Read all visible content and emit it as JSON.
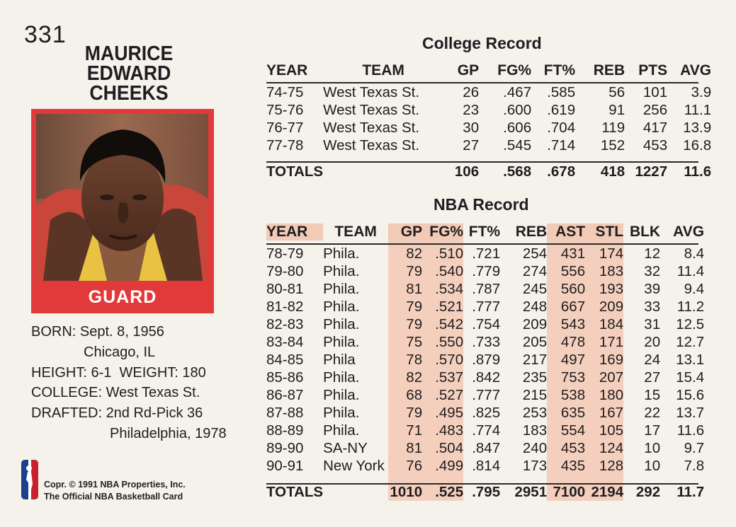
{
  "card_number": "331",
  "player": {
    "name_lines": [
      "MAURICE",
      "EDWARD",
      "CHEEKS"
    ],
    "position": "GUARD"
  },
  "bio": {
    "born_label": "BORN:",
    "born_date": "Sept. 8, 1956",
    "born_place": "Chicago, IL",
    "height_label": "HEIGHT:",
    "height": "6-1",
    "weight_label": "WEIGHT:",
    "weight": "180",
    "college_label": "COLLEGE:",
    "college": "West Texas St.",
    "drafted_label": "DRAFTED:",
    "drafted_pick": "2nd Rd-Pick 36",
    "drafted_team_year": "Philadelphia, 1978"
  },
  "copyright": {
    "line1": "Copr. © 1991 NBA Properties, Inc.",
    "line2": "The Official NBA Basketball Card"
  },
  "college_record": {
    "title": "College Record",
    "headers": [
      "YEAR",
      "TEAM",
      "GP",
      "FG%",
      "FT%",
      "REB",
      "PTS",
      "AVG"
    ],
    "rows": [
      [
        "74-75",
        "West Texas St.",
        "26",
        ".467",
        ".585",
        "56",
        "101",
        "3.9"
      ],
      [
        "75-76",
        "West Texas St.",
        "23",
        ".600",
        ".619",
        "91",
        "256",
        "11.1"
      ],
      [
        "76-77",
        "West Texas St.",
        "30",
        ".606",
        ".704",
        "119",
        "417",
        "13.9"
      ],
      [
        "77-78",
        "West Texas St.",
        "27",
        ".545",
        ".714",
        "152",
        "453",
        "16.8"
      ]
    ],
    "totals": [
      "TOTALS",
      "",
      "106",
      ".568",
      ".678",
      "418",
      "1227",
      "11.6"
    ]
  },
  "nba_record": {
    "title": "NBA Record",
    "headers": [
      "YEAR",
      "TEAM",
      "GP",
      "FG%",
      "FT%",
      "REB",
      "AST",
      "STL",
      "BLK",
      "AVG"
    ],
    "rows": [
      [
        "78-79",
        "Phila.",
        "82",
        ".510",
        ".721",
        "254",
        "431",
        "174",
        "12",
        "8.4"
      ],
      [
        "79-80",
        "Phila.",
        "79",
        ".540",
        ".779",
        "274",
        "556",
        "183",
        "32",
        "11.4"
      ],
      [
        "80-81",
        "Phila.",
        "81",
        ".534",
        ".787",
        "245",
        "560",
        "193",
        "39",
        "9.4"
      ],
      [
        "81-82",
        "Phila.",
        "79",
        ".521",
        ".777",
        "248",
        "667",
        "209",
        "33",
        "11.2"
      ],
      [
        "82-83",
        "Phila.",
        "79",
        ".542",
        ".754",
        "209",
        "543",
        "184",
        "31",
        "12.5"
      ],
      [
        "83-84",
        "Phila.",
        "75",
        ".550",
        ".733",
        "205",
        "478",
        "171",
        "20",
        "12.7"
      ],
      [
        "84-85",
        "Phila",
        "78",
        ".570",
        ".879",
        "217",
        "497",
        "169",
        "24",
        "13.1"
      ],
      [
        "85-86",
        "Phila.",
        "82",
        ".537",
        ".842",
        "235",
        "753",
        "207",
        "27",
        "15.4"
      ],
      [
        "86-87",
        "Phila.",
        "68",
        ".527",
        ".777",
        "215",
        "538",
        "180",
        "15",
        "15.6"
      ],
      [
        "87-88",
        "Phila.",
        "79",
        ".495",
        ".825",
        "253",
        "635",
        "167",
        "22",
        "13.7"
      ],
      [
        "88-89",
        "Phila.",
        "71",
        ".483",
        ".774",
        "183",
        "554",
        "105",
        "17",
        "11.6"
      ],
      [
        "89-90",
        "SA-NY",
        "81",
        ".504",
        ".847",
        "240",
        "453",
        "124",
        "10",
        "9.7"
      ],
      [
        "90-91",
        "New York",
        "76",
        ".499",
        ".814",
        "173",
        "435",
        "128",
        "10",
        "7.8"
      ]
    ],
    "totals": [
      "TOTALS",
      "",
      "1010",
      ".525",
      ".795",
      "2951",
      "7100",
      "2194",
      "292",
      "11.7"
    ]
  },
  "colors": {
    "frame_red": "#e23a3b",
    "column_shade": "#f4cfbd",
    "card_bg": "#f5f1eb"
  }
}
